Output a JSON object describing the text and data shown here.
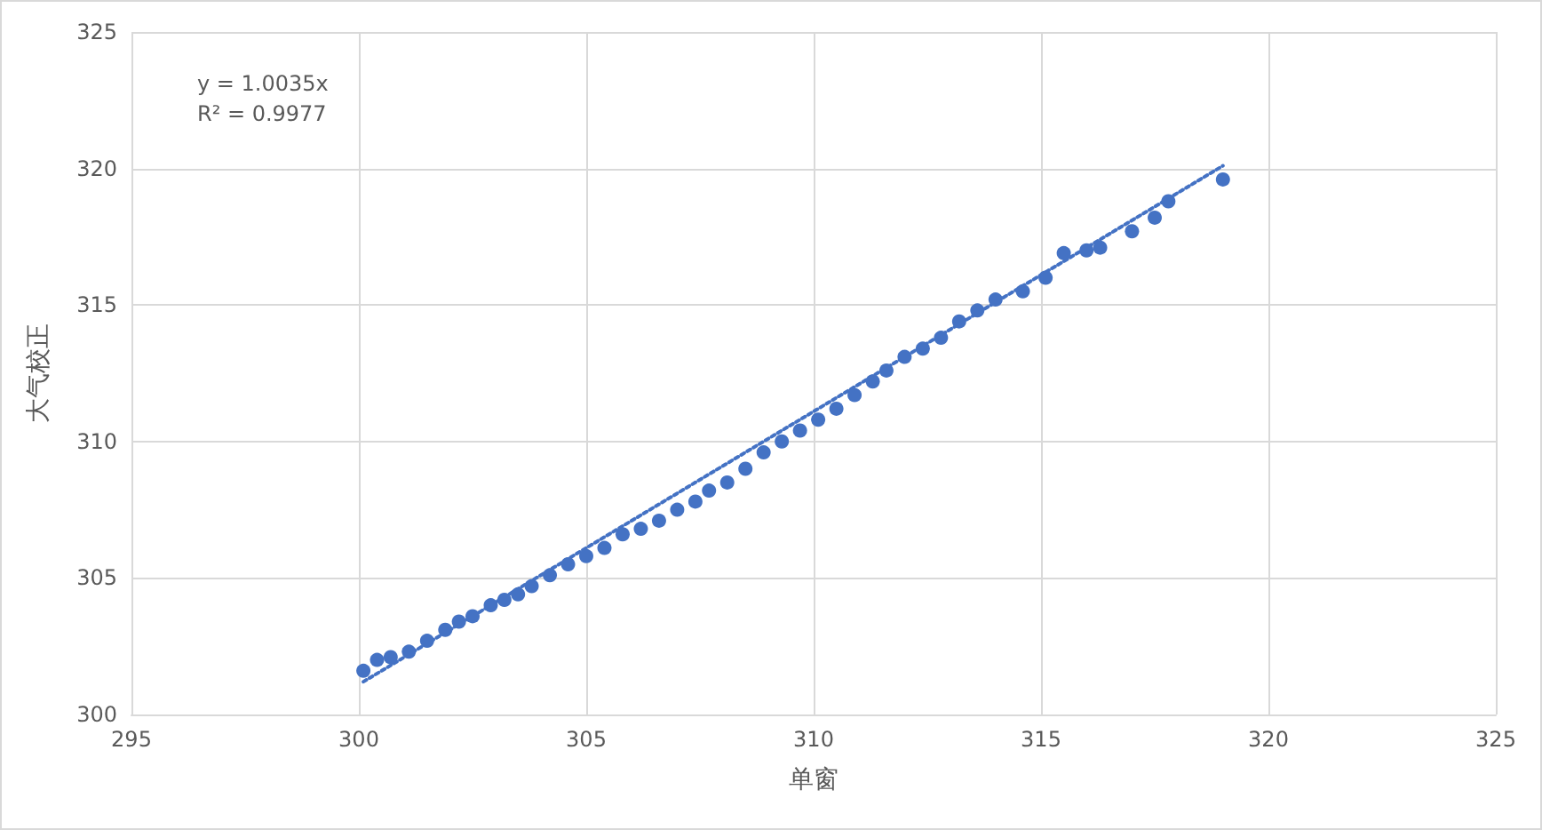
{
  "chart_data": {
    "type": "scatter",
    "xlabel": "单窗",
    "ylabel": "大气校正",
    "annotations": [
      "y = 1.0035x",
      "R² = 0.9977"
    ],
    "xlim": [
      295,
      325
    ],
    "xticks": [
      295,
      300,
      305,
      310,
      315,
      320,
      325
    ],
    "ylim": [
      300,
      325
    ],
    "yticks": [
      300,
      305,
      310,
      315,
      320,
      325
    ],
    "grid": true,
    "marker": "circle",
    "series": [
      {
        "color": "#4472c4",
        "x": [
          300.1,
          300.4,
          300.7,
          301.1,
          301.5,
          301.9,
          302.2,
          302.5,
          302.9,
          303.2,
          303.5,
          303.8,
          304.2,
          304.6,
          305.0,
          305.4,
          305.8,
          306.2,
          306.6,
          307.0,
          307.4,
          307.7,
          308.1,
          308.5,
          308.9,
          309.3,
          309.7,
          310.1,
          310.5,
          310.9,
          311.3,
          311.6,
          312.0,
          312.4,
          312.8,
          313.2,
          313.6,
          314.0,
          314.6,
          315.1,
          315.5,
          316.0,
          316.3,
          317.0,
          317.5,
          317.8,
          319.0
        ],
        "values": [
          301.6,
          302.0,
          302.1,
          302.3,
          302.7,
          303.1,
          303.4,
          303.6,
          304.0,
          304.2,
          304.4,
          304.7,
          305.1,
          305.5,
          305.8,
          306.1,
          306.6,
          306.8,
          307.1,
          307.5,
          307.8,
          308.2,
          308.5,
          309.0,
          309.6,
          310.0,
          310.4,
          310.8,
          311.2,
          311.7,
          312.2,
          312.6,
          313.1,
          313.4,
          313.8,
          314.4,
          314.8,
          315.2,
          315.5,
          316.0,
          316.9,
          317.0,
          317.1,
          317.7,
          318.2,
          318.8,
          319.6
        ]
      },
      {
        "type": "line",
        "color": "#4472c4",
        "marker": "none",
        "line_style": "dotted",
        "x": [
          300.1,
          319.0
        ],
        "values": [
          301.2,
          320.1
        ]
      }
    ]
  }
}
